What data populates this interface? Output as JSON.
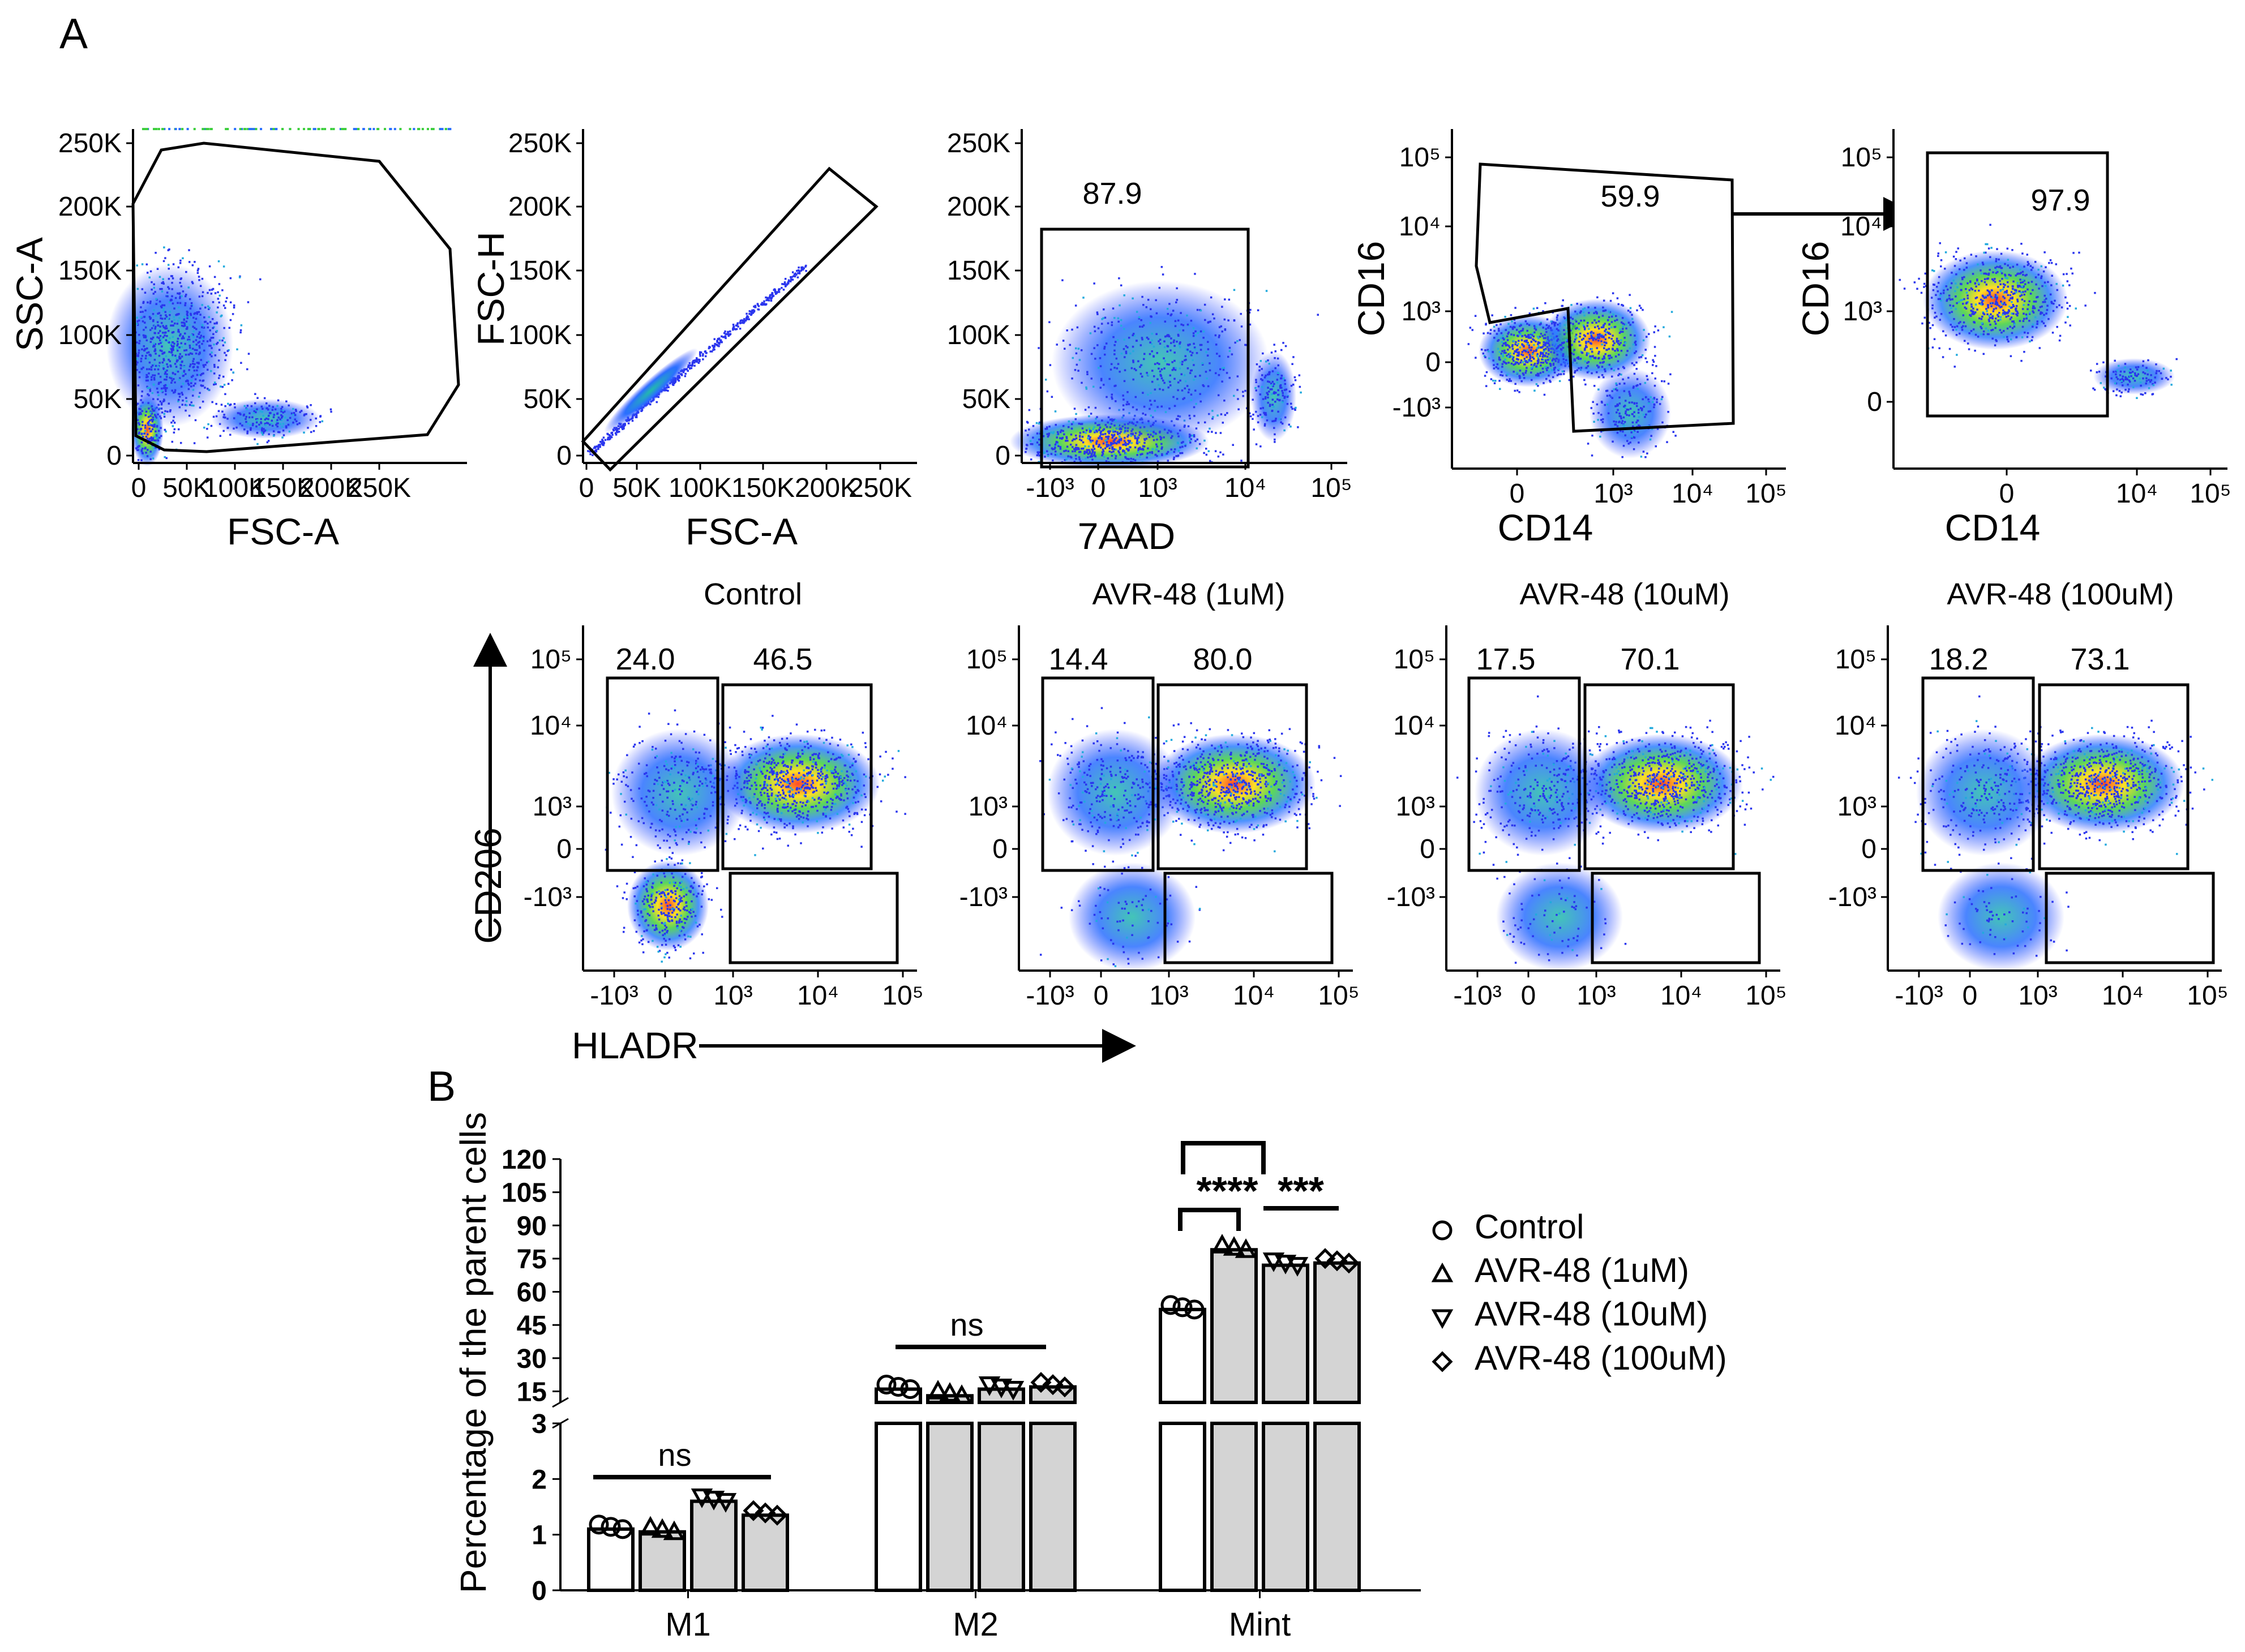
{
  "panel_labels": {
    "a": "A",
    "b": "B"
  },
  "flow_gating": [
    {
      "x_label": "FSC-A",
      "y_label": "SSC-A",
      "x_ticks": [
        "0",
        "50K",
        "100K",
        "150K",
        "200K",
        "250K"
      ],
      "y_ticks": [
        "250K",
        "200K",
        "150K",
        "100K",
        "50K",
        "0"
      ],
      "gate_value": ""
    },
    {
      "x_label": "FSC-A",
      "y_label": "FSC-H",
      "x_ticks": [
        "0",
        "50K",
        "100K",
        "150K",
        "200K",
        "250K"
      ],
      "y_ticks": [
        "250K",
        "200K",
        "150K",
        "100K",
        "50K",
        "0"
      ],
      "gate_value": ""
    },
    {
      "x_label": "7AAD",
      "y_label": "",
      "x_ticks": [
        "-10³",
        "0",
        "10³",
        "10⁴",
        "10⁵"
      ],
      "y_ticks": [
        "250K",
        "200K",
        "150K",
        "100K",
        "50K",
        "0"
      ],
      "gate_value": "87.9"
    },
    {
      "x_label": "CD14",
      "y_label": "CD16",
      "x_ticks": [
        "0",
        "10³",
        "10⁴",
        "10⁵"
      ],
      "y_ticks": [
        "10⁵",
        "10⁴",
        "10³",
        "0",
        "-10³"
      ],
      "gate_value": "59.9"
    },
    {
      "x_label": "CD14",
      "y_label": "CD16",
      "x_ticks": [
        "0",
        "10⁴",
        "10⁵"
      ],
      "y_ticks": [
        "10⁵",
        "10⁴",
        "10³",
        "0"
      ],
      "gate_value": "97.9"
    }
  ],
  "treatment_plots": {
    "x_axis_label": "HLADR",
    "y_axis_label": "CD206",
    "x_ticks": [
      "-10³",
      "0",
      "10³",
      "10⁴",
      "10⁵"
    ],
    "y_ticks": [
      "10⁵",
      "10⁴",
      "10³",
      "0",
      "-10³"
    ],
    "panels": [
      {
        "title": "Control",
        "left_gate": "24.0",
        "right_gate": "46.5"
      },
      {
        "title": "AVR-48 (1uM)",
        "left_gate": "14.4",
        "right_gate": "80.0"
      },
      {
        "title": "AVR-48 (10uM)",
        "left_gate": "17.5",
        "right_gate": "70.1"
      },
      {
        "title": "AVR-48 (100uM)",
        "left_gate": "18.2",
        "right_gate": "73.1"
      }
    ]
  },
  "chart_data": {
    "type": "bar",
    "title": "",
    "xlabel": "",
    "ylabel": "Percentage of the parent cells",
    "categories": [
      "M1",
      "M2",
      "Mint"
    ],
    "series": [
      {
        "name": "Control",
        "marker": "circle",
        "values": [
          1.1,
          16,
          52
        ]
      },
      {
        "name": "AVR-48 (1uM)",
        "marker": "triangle-up",
        "values": [
          1.05,
          13,
          79
        ]
      },
      {
        "name": "AVR-48 (10uM)",
        "marker": "triangle-down",
        "values": [
          1.6,
          16,
          72
        ]
      },
      {
        "name": "AVR-48 (100uM)",
        "marker": "diamond",
        "values": [
          1.35,
          17,
          73
        ]
      }
    ],
    "y_axis_break": {
      "lower_range": [
        0,
        3
      ],
      "upper_range": [
        10,
        120
      ]
    },
    "lower_y_ticks": [
      "0",
      "1",
      "2",
      "3"
    ],
    "upper_y_ticks": [
      "120",
      "105",
      "90",
      "75",
      "60",
      "45",
      "30",
      "15"
    ],
    "significance": [
      {
        "group": "M1",
        "label": "ns"
      },
      {
        "group": "M2",
        "label": "ns"
      },
      {
        "group": "Mint",
        "label": "****"
      },
      {
        "group": "Mint",
        "label": "***"
      }
    ],
    "legend_position": "right"
  },
  "colors": {
    "bar_control": "#ffffff",
    "bar_treated": "#d4d4d4",
    "outline": "#000000"
  }
}
